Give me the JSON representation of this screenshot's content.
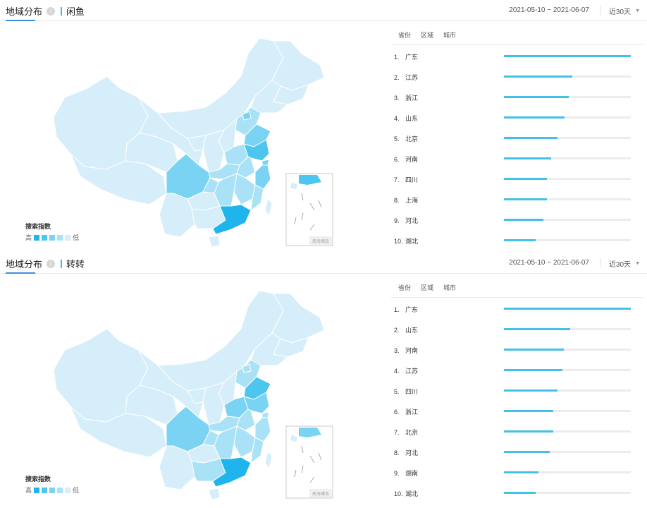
{
  "panels": [
    {
      "tab_main": "地域分布",
      "info_icon": "i",
      "tab_app": "闲鱼",
      "date_range": "2021-05-10 ~ 2021-06-07",
      "period": "近30天",
      "subtabs": [
        "省份",
        "区域",
        "城市"
      ],
      "legend_title": "搜索指数",
      "legend_high": "高",
      "legend_low": "低",
      "legend_colors": [
        "#1fb5ec",
        "#4cc6ef",
        "#7ad3f2",
        "#a9e2f6",
        "#d6eef9"
      ],
      "map_highlights": [
        "guangdong",
        "jiangsu",
        "zhejiang",
        "shandong",
        "beijing",
        "henan",
        "sichuan",
        "shanghai"
      ],
      "map_inset_label": "南海诸岛"
    },
    {
      "tab_main": "地域分布",
      "info_icon": "i",
      "tab_app": "转转",
      "date_range": "2021-05-10 ~ 2021-06-07",
      "period": "近30天",
      "subtabs": [
        "省份",
        "区域",
        "城市"
      ],
      "legend_title": "搜索指数",
      "legend_high": "高",
      "legend_low": "低",
      "legend_colors": [
        "#1fb5ec",
        "#4cc6ef",
        "#7ad3f2",
        "#a9e2f6",
        "#d6eef9"
      ],
      "map_highlights": [
        "guangdong",
        "shandong",
        "henan",
        "jiangsu",
        "sichuan",
        "zhejiang",
        "beijing",
        "hebei"
      ],
      "map_inset_label": "南海诸岛"
    }
  ],
  "chart_data": [
    {
      "type": "bar",
      "title": "",
      "categories": [
        "广东",
        "江苏",
        "浙江",
        "山东",
        "北京",
        "河南",
        "四川",
        "上海",
        "河北",
        "湖北"
      ],
      "ranks": [
        "1.",
        "2.",
        "3.",
        "4.",
        "5.",
        "6.",
        "7.",
        "8.",
        "9.",
        "10."
      ],
      "values": [
        100,
        54,
        51,
        48,
        42,
        37,
        34,
        34,
        31,
        25
      ],
      "xlim": [
        0,
        100
      ]
    },
    {
      "type": "bar",
      "title": "",
      "categories": [
        "广东",
        "山东",
        "河南",
        "江苏",
        "四川",
        "浙江",
        "北京",
        "河北",
        "湖南",
        "湖北"
      ],
      "ranks": [
        "1.",
        "2.",
        "3.",
        "4.",
        "5.",
        "6.",
        "7.",
        "8.",
        "9.",
        "10."
      ],
      "values": [
        100,
        52,
        47,
        46,
        42,
        39,
        39,
        36,
        27,
        25
      ],
      "xlim": [
        0,
        100
      ]
    }
  ]
}
